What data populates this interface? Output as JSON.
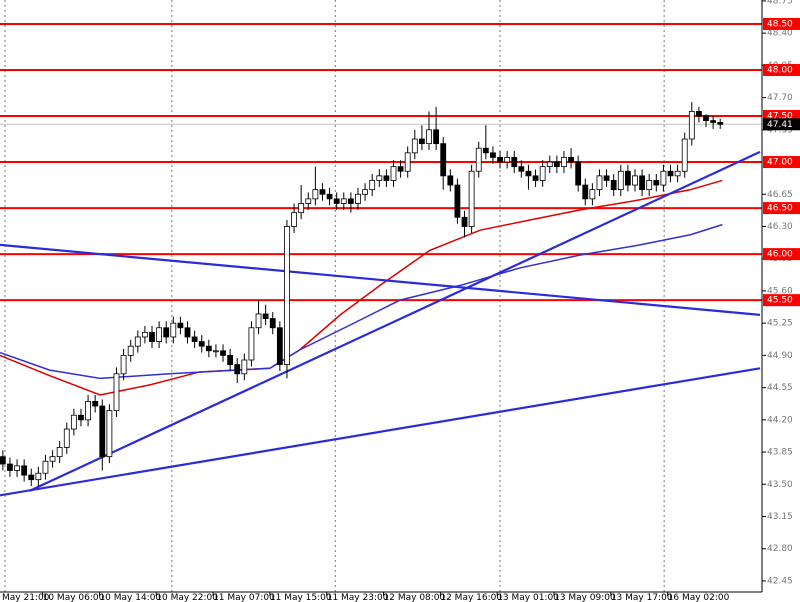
{
  "chart_data": {
    "type": "candlestick",
    "open": [
      43.8,
      43.72,
      43.65,
      43.7,
      43.6,
      43.55,
      43.62,
      43.75,
      43.8,
      43.9,
      44.1,
      44.25,
      44.2,
      44.4,
      44.35,
      43.8,
      44.3,
      44.7,
      44.9,
      45.0,
      45.1,
      45.15,
      45.05,
      45.2,
      45.1,
      45.25,
      45.2,
      45.1,
      45.05,
      45.0,
      44.95,
      44.95,
      44.9,
      44.8,
      44.7,
      44.85,
      45.2,
      45.35,
      45.3,
      45.2,
      44.8,
      46.3,
      46.45,
      46.55,
      46.6,
      46.7,
      46.65,
      46.6,
      46.55,
      46.6,
      46.55,
      46.65,
      46.7,
      46.8,
      46.85,
      46.8,
      46.95,
      46.9,
      47.1,
      47.25,
      47.2,
      47.35,
      47.2,
      46.85,
      46.75,
      46.4,
      46.3,
      46.9,
      47.15,
      47.1,
      47.05,
      47.0,
      47.05,
      46.95,
      46.9,
      46.85,
      46.8,
      46.95,
      47.0,
      46.95,
      47.05,
      47.0,
      46.75,
      46.6,
      46.7,
      46.85,
      46.8,
      46.7,
      46.9,
      46.75,
      46.85,
      46.7,
      46.8,
      46.75,
      46.9,
      46.85,
      46.9,
      47.25,
      47.55,
      47.5,
      47.45,
      47.43
    ],
    "high": [
      43.87,
      43.79,
      43.77,
      43.77,
      43.67,
      43.69,
      43.82,
      43.87,
      43.97,
      44.17,
      44.32,
      44.32,
      44.47,
      44.47,
      44.42,
      44.37,
      44.77,
      44.97,
      45.07,
      45.17,
      45.22,
      45.22,
      45.27,
      45.27,
      45.32,
      45.32,
      45.27,
      45.17,
      45.12,
      45.07,
      45.02,
      45.02,
      44.97,
      44.87,
      44.92,
      45.27,
      45.5,
      45.45,
      45.37,
      45.27,
      46.37,
      46.55,
      46.75,
      46.67,
      46.95,
      46.77,
      46.72,
      46.67,
      46.67,
      46.67,
      46.72,
      46.77,
      46.87,
      46.92,
      46.92,
      47.02,
      47.02,
      47.17,
      47.35,
      47.4,
      47.55,
      47.6,
      47.27,
      46.92,
      46.82,
      46.47,
      46.97,
      47.22,
      47.4,
      47.17,
      47.12,
      47.12,
      47.12,
      47.02,
      46.97,
      46.92,
      47.02,
      47.07,
      47.07,
      47.12,
      47.15,
      47.07,
      46.82,
      46.77,
      46.92,
      46.92,
      46.87,
      46.97,
      46.97,
      46.92,
      46.92,
      46.87,
      46.87,
      46.97,
      46.97,
      46.97,
      47.32,
      47.65,
      47.6,
      47.52,
      47.5,
      47.47
    ],
    "low": [
      43.65,
      43.58,
      43.58,
      43.53,
      43.48,
      43.48,
      43.55,
      43.68,
      43.73,
      43.83,
      44.03,
      44.13,
      44.13,
      44.28,
      43.65,
      43.73,
      44.23,
      44.63,
      44.83,
      44.93,
      45.03,
      44.98,
      44.98,
      45.03,
      45.03,
      45.13,
      45.03,
      44.98,
      44.93,
      44.88,
      44.88,
      44.83,
      44.73,
      44.6,
      44.63,
      44.78,
      45.13,
      45.23,
      45.13,
      44.73,
      44.65,
      46.23,
      46.38,
      46.48,
      46.53,
      46.58,
      46.53,
      46.48,
      46.48,
      46.45,
      46.48,
      46.58,
      46.63,
      46.73,
      46.73,
      46.73,
      46.83,
      46.83,
      47.03,
      47.13,
      47.13,
      47.13,
      46.7,
      46.68,
      46.33,
      46.18,
      46.23,
      46.83,
      47.03,
      46.98,
      46.93,
      46.93,
      46.88,
      46.83,
      46.7,
      46.73,
      46.73,
      46.88,
      46.88,
      46.88,
      46.93,
      46.68,
      46.53,
      46.53,
      46.63,
      46.73,
      46.63,
      46.63,
      46.68,
      46.68,
      46.63,
      46.63,
      46.68,
      46.68,
      46.78,
      46.78,
      46.83,
      47.18,
      47.43,
      47.38,
      47.36,
      47.36
    ],
    "close": [
      43.72,
      43.65,
      43.7,
      43.6,
      43.55,
      43.62,
      43.75,
      43.8,
      43.9,
      44.1,
      44.25,
      44.2,
      44.4,
      44.35,
      43.8,
      44.3,
      44.7,
      44.9,
      45.0,
      45.1,
      45.15,
      45.05,
      45.2,
      45.1,
      45.25,
      45.2,
      45.1,
      45.05,
      45.0,
      44.95,
      44.95,
      44.9,
      44.8,
      44.7,
      44.85,
      45.2,
      45.35,
      45.3,
      45.2,
      44.8,
      46.3,
      46.45,
      46.55,
      46.6,
      46.7,
      46.65,
      46.6,
      46.55,
      46.6,
      46.55,
      46.65,
      46.7,
      46.8,
      46.85,
      46.8,
      46.95,
      46.9,
      47.1,
      47.25,
      47.2,
      47.35,
      47.2,
      46.85,
      46.75,
      46.4,
      46.3,
      46.9,
      47.15,
      47.1,
      47.05,
      47.0,
      47.05,
      46.95,
      46.9,
      46.85,
      46.8,
      46.95,
      47.0,
      46.95,
      47.05,
      47.0,
      46.75,
      46.6,
      46.7,
      46.85,
      46.8,
      46.7,
      46.9,
      46.75,
      46.85,
      46.7,
      46.8,
      46.75,
      46.9,
      46.85,
      46.9,
      47.25,
      47.55,
      47.5,
      47.45,
      47.43,
      47.41
    ],
    "xlim": [
      -0.4,
      106.6
    ],
    "xticks": [
      {
        "value": -2.4,
        "label": "May 21:00"
      },
      {
        "value": 5.6,
        "label": "10 May 06:00"
      },
      {
        "value": 13.6,
        "label": "10 May 14:00"
      },
      {
        "value": 21.6,
        "label": "10 May 22:00"
      },
      {
        "value": 29.6,
        "label": "11 May 07:00"
      },
      {
        "value": 37.6,
        "label": "11 May 15:00"
      },
      {
        "value": 45.6,
        "label": "11 May 23:00"
      },
      {
        "value": 53.6,
        "label": "12 May 08:00"
      },
      {
        "value": 61.6,
        "label": "12 May 16:00"
      },
      {
        "value": 69.6,
        "label": "13 May 01:00"
      },
      {
        "value": 77.6,
        "label": "13 May 09:00"
      },
      {
        "value": 85.6,
        "label": "13 May 17:00"
      },
      {
        "value": 93.6,
        "label": "16 May 02:00"
      }
    ],
    "xgrid": [
      0.3,
      23.8,
      46.8,
      70,
      93.1
    ],
    "ylim": [
      42.33,
      48.76
    ],
    "yticks": [
      48.75,
      {
        "value": 48.4,
        "label": "48.40"
      },
      48.05,
      {
        "value": 47.7,
        "label": "47.70"
      },
      47.35,
      46.65,
      {
        "value": 46.3,
        "label": "46.30"
      },
      45.95,
      {
        "value": 45.6,
        "label": "45.60"
      },
      45.25,
      {
        "value": 44.9,
        "label": "44.90"
      },
      44.55,
      {
        "value": 44.2,
        "label": "44.20"
      },
      43.85,
      {
        "value": 43.5,
        "label": "43.50"
      },
      43.15,
      {
        "value": 42.8,
        "label": "42.80"
      },
      42.45
    ],
    "levels": [
      {
        "value": 48.5,
        "label": "48.50"
      },
      {
        "value": 48.0,
        "label": "48.00"
      },
      {
        "value": 47.5,
        "label": "47.50"
      },
      {
        "value": 47.0,
        "label": "47.00"
      },
      {
        "value": 46.5,
        "label": "46.50"
      },
      {
        "value": 46.0,
        "label": "46.00"
      },
      {
        "value": 45.5,
        "label": "45.50"
      }
    ],
    "level_color": "#ff0000",
    "last_price": 47.41,
    "moving_averages": [
      {
        "color": "#e00000",
        "x": [
          -0.4,
          6.6,
          13.7,
          20.7,
          27.7,
          37.6,
          41.8,
          47.5,
          53.1,
          60.1,
          67.2,
          74.2,
          81.3,
          89.7,
          96.8,
          101.3
        ],
        "values": [
          44.9,
          44.68,
          44.47,
          44.58,
          44.72,
          44.76,
          44.96,
          45.34,
          45.66,
          46.04,
          46.26,
          46.37,
          46.48,
          46.59,
          46.7,
          46.8
        ]
      },
      {
        "color": "#3030d0",
        "x": [
          -0.4,
          6.6,
          13.7,
          23.5,
          37.6,
          41.8,
          48.9,
          55.9,
          64.4,
          72.8,
          81.3,
          89.7,
          96.8,
          101.3
        ],
        "values": [
          44.93,
          44.74,
          44.65,
          44.7,
          44.76,
          44.96,
          45.23,
          45.5,
          45.66,
          45.85,
          45.99,
          46.1,
          46.21,
          46.32
        ]
      }
    ],
    "trendlines": [
      {
        "color": "#2b2bdc",
        "x": [
          -0.4,
          106.6
        ],
        "values": [
          46.1,
          45.34
        ]
      },
      {
        "color": "#2b2bdc",
        "x": [
          -0.4,
          106.6
        ],
        "values": [
          43.38,
          44.76
        ]
      },
      {
        "color": "#2b2bdc",
        "x": [
          3.8,
          106.6
        ],
        "values": [
          43.43,
          47.11
        ]
      }
    ]
  }
}
